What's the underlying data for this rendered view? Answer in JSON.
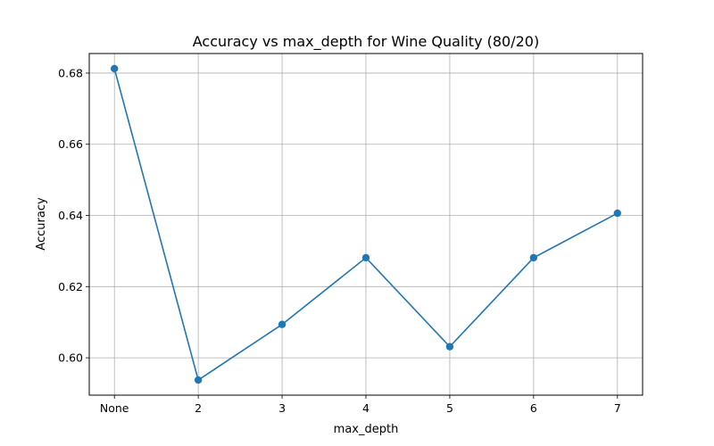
{
  "chart_data": {
    "type": "line",
    "title": "Accuracy vs max_depth for Wine Quality (80/20)",
    "xlabel": "max_depth",
    "ylabel": "Accuracy",
    "categories": [
      "None",
      "2",
      "3",
      "4",
      "5",
      "6",
      "7"
    ],
    "series": [
      {
        "values": [
          0.68125,
          0.59375,
          0.609375,
          0.628125,
          0.603125,
          0.628125,
          0.640625
        ],
        "color": "#1f77b4"
      }
    ],
    "ylim": [
      0.5895,
      0.6855
    ],
    "yticks": [
      0.6,
      0.62,
      0.64,
      0.66,
      0.68
    ],
    "ytick_labels": [
      "0.60",
      "0.62",
      "0.64",
      "0.66",
      "0.68"
    ],
    "grid": true,
    "legend": false
  }
}
